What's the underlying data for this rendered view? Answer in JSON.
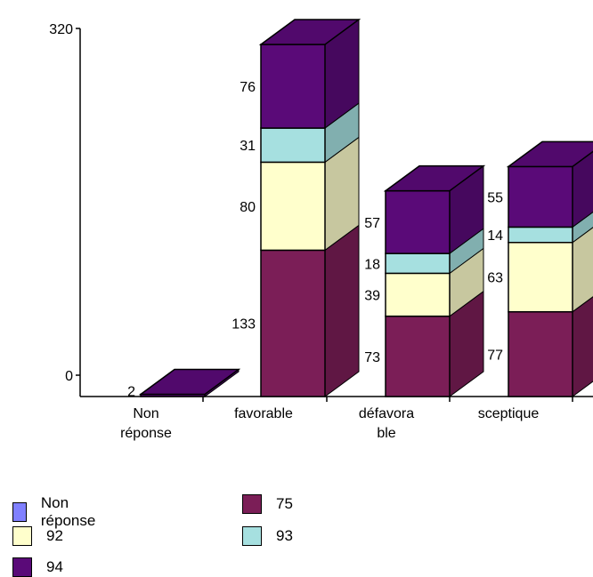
{
  "chart_data": {
    "type": "bar",
    "stacked": true,
    "style": "3d",
    "categories": [
      [
        "Non",
        "réponse"
      ],
      [
        "favorable"
      ],
      [
        "défavora",
        "ble"
      ],
      [
        "sceptique"
      ]
    ],
    "series": [
      {
        "name": "75",
        "color": "#7b1e57",
        "values": [
          0,
          133,
          73,
          77
        ]
      },
      {
        "name": "92",
        "color": "#ffffcc",
        "values": [
          0,
          80,
          39,
          63
        ]
      },
      {
        "name": "93",
        "color": "#a6e0e0",
        "values": [
          0,
          31,
          18,
          14
        ]
      },
      {
        "name": "94",
        "color": "#5a0a78",
        "values": [
          2,
          76,
          57,
          55
        ]
      }
    ],
    "ylim": [
      0,
      320
    ],
    "y_ticks": [
      0,
      320
    ],
    "grid": false,
    "legend_position": "bottom-left",
    "legend": [
      {
        "name": "Non réponse",
        "color": "#8080ff"
      },
      {
        "name": "75",
        "color": "#7b1e57"
      },
      {
        "name": "92",
        "color": "#ffffcc"
      },
      {
        "name": "93",
        "color": "#a6e0e0"
      },
      {
        "name": "94",
        "color": "#5a0a78"
      }
    ]
  }
}
